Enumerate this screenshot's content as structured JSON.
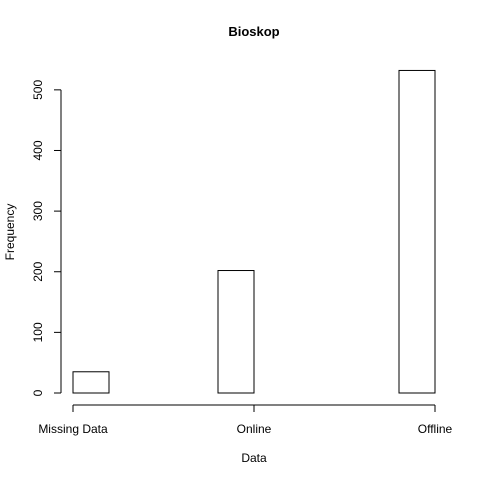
{
  "chart_data": {
    "type": "bar",
    "title": "Bioskop",
    "xlabel": "Data",
    "ylabel": "Frequency",
    "categories": [
      "Missing Data",
      "Online",
      "Offline"
    ],
    "values": [
      35,
      202,
      532
    ],
    "ylim": [
      0,
      532
    ],
    "yticks": [
      0,
      100,
      200,
      300,
      400,
      500
    ],
    "ytick_labels": [
      "0",
      "100",
      "200",
      "300",
      "400",
      "500"
    ],
    "grid": false,
    "legend": "none",
    "colors": {
      "bar_fill": "#ffffff",
      "bar_stroke": "#000000"
    }
  }
}
